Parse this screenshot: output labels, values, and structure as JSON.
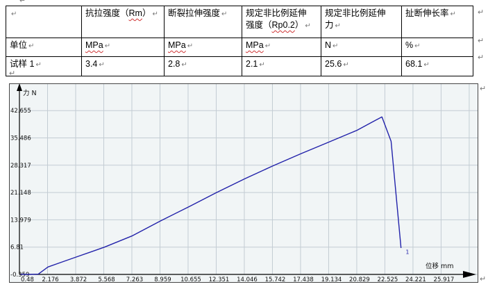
{
  "document": {
    "pilcrow": "↵",
    "table": {
      "header": {
        "c1": "",
        "c2_pre": "抗拉强度（",
        "c2_mark": "Rm",
        "c2_post": "）",
        "c3": "断裂拉伸强度",
        "c4_line1": "规定非比例延伸",
        "c4_line2_pre": "强度（",
        "c4_mark": "Rp0.2",
        "c4_post": "）",
        "c5_line1": "规定非比例延伸",
        "c5_line2": "力",
        "c6": "扯断伸长率"
      },
      "unit_row": {
        "label": "单位",
        "c2": "MPa",
        "c3": "MPa",
        "c4": "MPa",
        "c5": "N",
        "c6": "%"
      },
      "sample_row": {
        "label": "试样 1",
        "c2": "3.4",
        "c3": "2.8",
        "c4": "2.1",
        "c5": "25.6",
        "c6": "68.1"
      }
    }
  },
  "chart_data": {
    "type": "line",
    "title": "",
    "xlabel": "位移 mm",
    "ylabel": "力 N",
    "x_ticks": [
      0.48,
      2.176,
      3.872,
      5.568,
      7.263,
      8.959,
      10.655,
      12.351,
      14.046,
      15.742,
      17.438,
      19.134,
      20.829,
      22.525,
      24.221,
      25.917
    ],
    "x_tick_labels": [
      "0.48",
      "2.176",
      "3.872",
      "5.568",
      "7.263",
      "8.959",
      "10.655",
      "12.351",
      "14.046",
      "15.742",
      "17.438",
      "19.134",
      "20.829",
      "22.525",
      "24.221",
      "25.917"
    ],
    "y_ticks": [
      -0.359,
      6.81,
      13.979,
      21.148,
      28.317,
      35.486,
      42.655
    ],
    "y_tick_labels": [
      "-0.359",
      "6.81",
      "13.979",
      "21.148",
      "28.317",
      "35.486",
      "42.655"
    ],
    "xlim": [
      0.48,
      27.613
    ],
    "ylim": [
      -0.359,
      49.824
    ],
    "grid": true,
    "legend": "none",
    "colors": {
      "curve": "#2222aa",
      "grid": "#c3ccd3",
      "background": "#f1f5f6",
      "border": "#444444",
      "axis": "#000000"
    },
    "series": [
      {
        "name": "试样 1",
        "color": "#2222aa",
        "points": [
          [
            0.55,
            -0.3
          ],
          [
            1.05,
            -0.36
          ],
          [
            1.62,
            -0.28
          ],
          [
            2.2,
            1.6
          ],
          [
            3.05,
            2.9
          ],
          [
            3.9,
            4.2
          ],
          [
            5.6,
            6.8
          ],
          [
            7.3,
            9.8
          ],
          [
            9.0,
            13.7
          ],
          [
            10.7,
            17.4
          ],
          [
            12.35,
            21.1
          ],
          [
            14.05,
            24.7
          ],
          [
            15.75,
            28.1
          ],
          [
            17.45,
            31.3
          ],
          [
            19.15,
            34.4
          ],
          [
            20.85,
            37.5
          ],
          [
            21.7,
            39.5
          ],
          [
            22.35,
            41.0
          ],
          [
            22.9,
            34.6
          ],
          [
            23.5,
            6.6
          ]
        ]
      }
    ],
    "end_marker": {
      "label": "1",
      "x": 23.78,
      "y": 5.0
    }
  }
}
